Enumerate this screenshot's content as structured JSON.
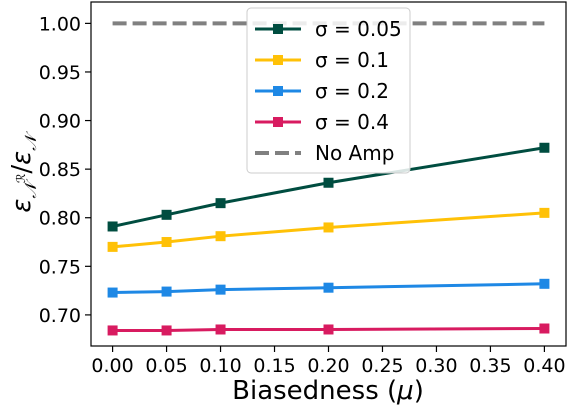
{
  "chart_data": {
    "type": "line",
    "xlabel": "Biasedness (μ)",
    "ylabel": "ε_𝒩^ℛ / ε_𝒩",
    "x": [
      0.0,
      0.05,
      0.1,
      0.2,
      0.4
    ],
    "xlim": [
      -0.02,
      0.42
    ],
    "ylim": [
      0.668,
      1.022
    ],
    "xticks": [
      "0.00",
      "0.05",
      "0.10",
      "0.15",
      "0.20",
      "0.25",
      "0.30",
      "0.35",
      "0.40"
    ],
    "yticks": [
      "0.70",
      "0.75",
      "0.80",
      "0.85",
      "0.90",
      "0.95",
      "1.00"
    ],
    "grid": false,
    "legend_position": "top-center",
    "series": [
      {
        "name": "σ = 0.05",
        "color": "#004d40",
        "marker": "square",
        "values": [
          0.791,
          0.803,
          0.815,
          0.836,
          0.872
        ]
      },
      {
        "name": "σ = 0.1",
        "color": "#ffc107",
        "marker": "square",
        "values": [
          0.77,
          0.775,
          0.781,
          0.79,
          0.805
        ]
      },
      {
        "name": "σ = 0.2",
        "color": "#1e88e5",
        "marker": "square",
        "values": [
          0.723,
          0.724,
          0.726,
          0.728,
          0.732
        ]
      },
      {
        "name": "σ = 0.4",
        "color": "#d81b60",
        "marker": "square",
        "values": [
          0.684,
          0.684,
          0.685,
          0.685,
          0.686
        ]
      },
      {
        "name": "No Amp",
        "color": "#808080",
        "style": "dashed",
        "values": [
          1.0,
          1.0,
          1.0,
          1.0,
          1.0
        ]
      }
    ]
  }
}
